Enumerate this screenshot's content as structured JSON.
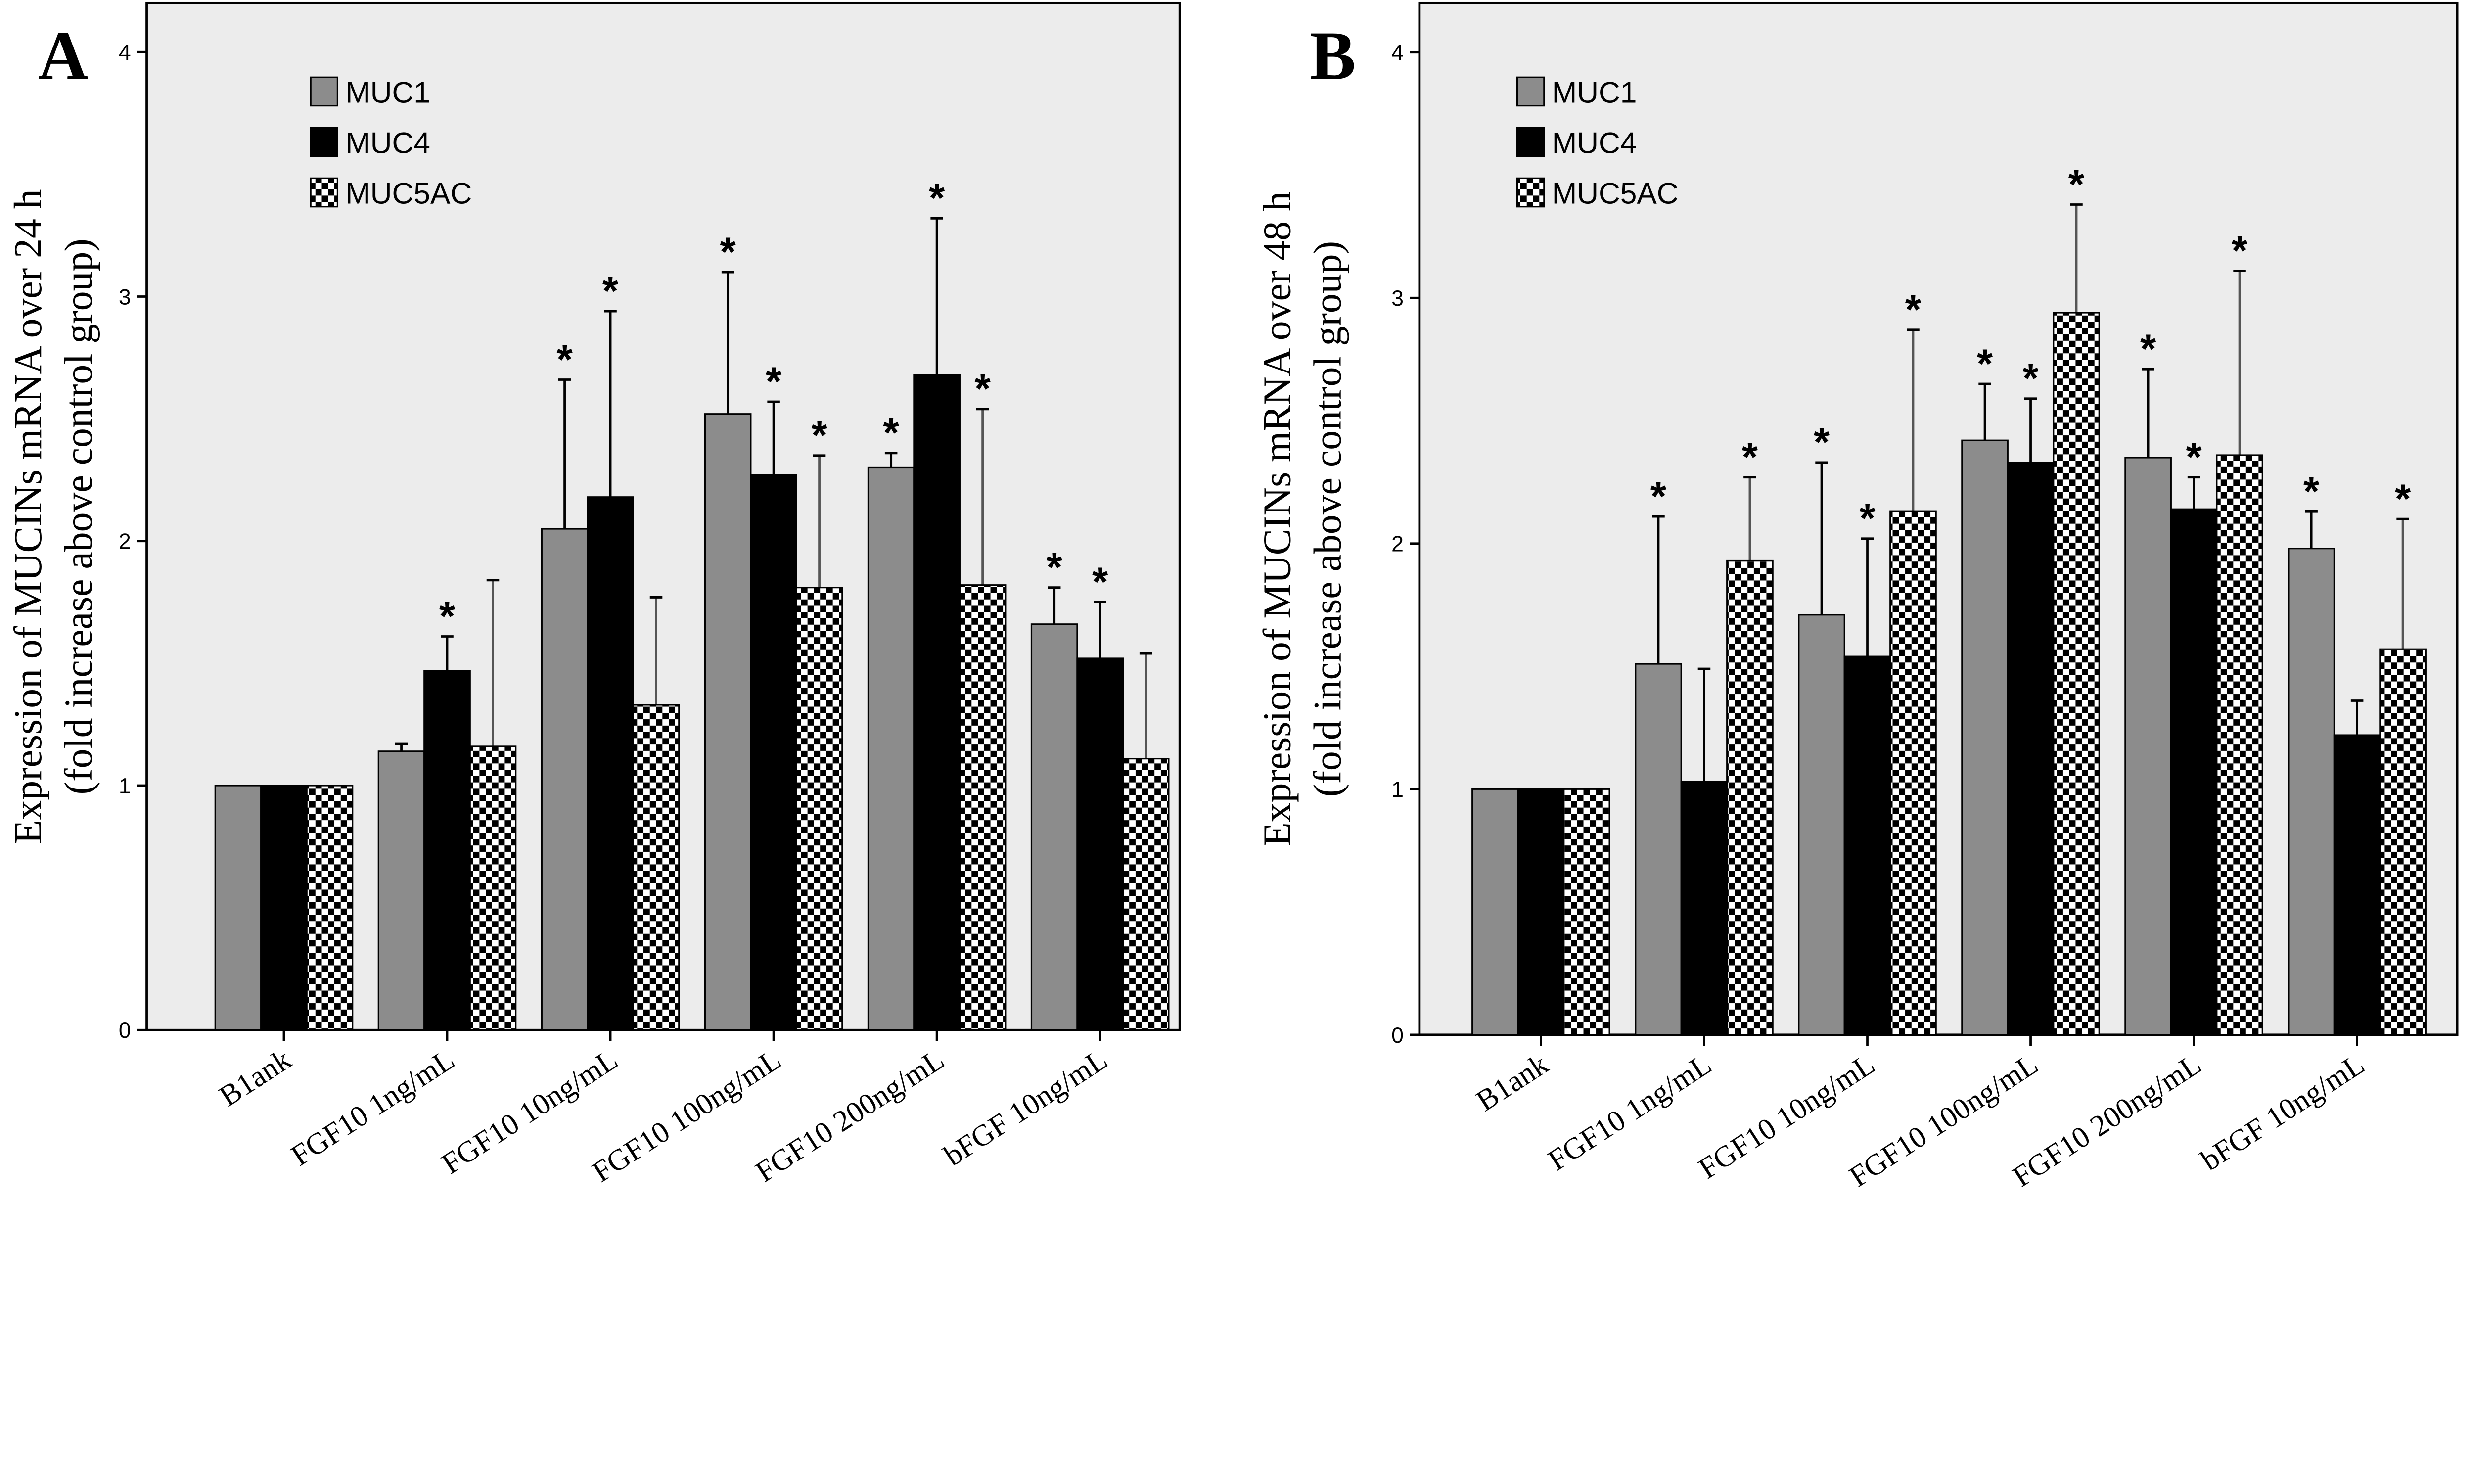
{
  "colors": {
    "MUC1": "#8c8c8c",
    "MUC4": "#000000",
    "MUC5AC": "checkerboard black/white",
    "plot_background": "#ececec"
  },
  "chart_data": [
    {
      "panel_label": "A",
      "type": "bar",
      "ylabel_line1": "Expression of MUCINs mRNA over 24 h",
      "ylabel_line2": "(fold increase above control group)",
      "ylim": [
        0,
        4.2
      ],
      "yticks": [
        "0",
        "1",
        "2",
        "3",
        "4"
      ],
      "grid": false,
      "legend_placement": "top-left",
      "categories": [
        "B1ank",
        "FGF10  1ng/mL",
        "FGF10  10ng/mL",
        "FGF10  100ng/mL",
        "FGF10  200ng/mL",
        "bFGF  10ng/mL"
      ],
      "series": [
        {
          "name": "MUC1",
          "values": [
            1.0,
            1.14,
            2.05,
            2.52,
            2.3,
            1.66
          ],
          "error_upper": [
            1.0,
            1.17,
            2.66,
            3.1,
            2.36,
            1.81
          ],
          "significant": [
            false,
            false,
            true,
            true,
            true,
            true
          ]
        },
        {
          "name": "MUC4",
          "values": [
            1.0,
            1.47,
            2.18,
            2.27,
            2.68,
            1.52
          ],
          "error_upper": [
            1.0,
            1.61,
            2.94,
            2.57,
            3.32,
            1.75
          ],
          "significant": [
            false,
            true,
            true,
            true,
            true,
            true
          ]
        },
        {
          "name": "MUC5AC",
          "values": [
            1.0,
            1.16,
            1.33,
            1.81,
            1.82,
            1.11
          ],
          "error_upper": [
            1.0,
            1.84,
            1.77,
            2.35,
            2.54,
            1.54
          ],
          "significant": [
            false,
            false,
            false,
            true,
            true,
            false
          ]
        }
      ],
      "annotation_symbol": "*"
    },
    {
      "panel_label": "B",
      "type": "bar",
      "ylabel_line1": "Expression of MUCINs mRNA over 48 h",
      "ylabel_line2": "(fold increase above control group)",
      "ylim": [
        0,
        4.2
      ],
      "yticks": [
        "0",
        "1",
        "2",
        "3",
        "4"
      ],
      "grid": false,
      "legend_placement": "top-left",
      "categories": [
        "B1ank",
        "FGF10  1ng/mL",
        "FGF10  10ng/mL",
        "FGF10  100ng/mL",
        "FGF10  200ng/mL",
        "bFGF  10ng/mL"
      ],
      "series": [
        {
          "name": "MUC1",
          "values": [
            1.0,
            1.51,
            1.71,
            2.42,
            2.35,
            1.98
          ],
          "error_upper": [
            1.0,
            2.11,
            2.33,
            2.65,
            2.71,
            2.13
          ],
          "significant": [
            false,
            true,
            true,
            true,
            true,
            true
          ]
        },
        {
          "name": "MUC4",
          "values": [
            1.0,
            1.03,
            1.54,
            2.33,
            2.14,
            1.22
          ],
          "error_upper": [
            1.0,
            1.49,
            2.02,
            2.59,
            2.27,
            1.36
          ],
          "significant": [
            false,
            false,
            true,
            true,
            true,
            false
          ]
        },
        {
          "name": "MUC5AC",
          "values": [
            1.0,
            1.93,
            2.13,
            2.94,
            2.36,
            1.57
          ],
          "error_upper": [
            1.0,
            2.27,
            2.87,
            3.38,
            3.11,
            2.1
          ],
          "significant": [
            false,
            true,
            true,
            true,
            true,
            true
          ]
        }
      ],
      "annotation_symbol": "*"
    }
  ]
}
